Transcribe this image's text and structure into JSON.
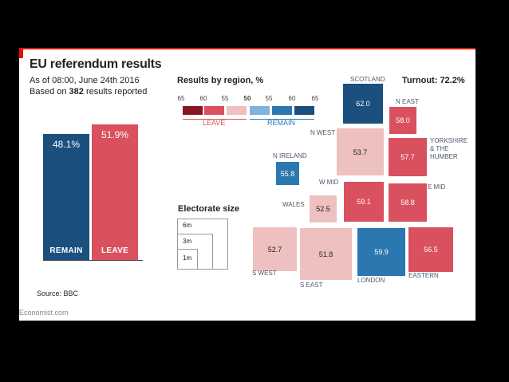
{
  "header": {
    "title": "EU referendum results",
    "subtitle_1": "As of 08:00, June 24th 2016",
    "subtitle_2_prefix": "Based on ",
    "subtitle_2_count": "382",
    "subtitle_2_suffix": " results reported"
  },
  "source": "Source: BBC",
  "brand": "Economist.com",
  "colors": {
    "remain_dark": "#1a4f7e",
    "remain_mid": "#2b77b0",
    "remain_light": "#7fb3dc",
    "leave_dark": "#8b1520",
    "leave_mid": "#d9505f",
    "leave_light": "#eec0bf"
  },
  "chart_data": [
    {
      "type": "bar",
      "categories": [
        "REMAIN",
        "LEAVE"
      ],
      "values": [
        48.1,
        51.9
      ],
      "value_labels": [
        "48.1%",
        "51.9%"
      ],
      "ylim": [
        0,
        60
      ],
      "title": "EU referendum results"
    },
    {
      "type": "heatmap",
      "title": "Results by region, %",
      "turnout": "Turnout: 72.2%",
      "legend": {
        "ticks": [
          "65",
          "60",
          "55",
          "50",
          "55",
          "60",
          "65"
        ],
        "leave_label": "LEAVE",
        "remain_label": "REMAIN"
      },
      "regions": [
        {
          "name": "SCOTLAND",
          "value": "62.0",
          "side": "remain"
        },
        {
          "name": "N EAST",
          "value": "58.0",
          "side": "leave"
        },
        {
          "name": "N WEST",
          "value": "53.7",
          "side": "leave"
        },
        {
          "name": "YORKSHIRE & THE HUMBER",
          "value": "57.7",
          "side": "leave"
        },
        {
          "name": "N IRELAND",
          "value": "55.8",
          "side": "remain"
        },
        {
          "name": "W MID",
          "value": "59.1",
          "side": "leave"
        },
        {
          "name": "E MID",
          "value": "58.8",
          "side": "leave"
        },
        {
          "name": "WALES",
          "value": "52.5",
          "side": "leave"
        },
        {
          "name": "S WEST",
          "value": "52.7",
          "side": "leave"
        },
        {
          "name": "S EAST",
          "value": "51.8",
          "side": "leave"
        },
        {
          "name": "LONDON",
          "value": "59.9",
          "side": "remain"
        },
        {
          "name": "EASTERN",
          "value": "56.5",
          "side": "leave"
        }
      ],
      "electorate": {
        "title": "Electorate size",
        "sizes": [
          "6m",
          "3m",
          "1m"
        ]
      }
    }
  ]
}
